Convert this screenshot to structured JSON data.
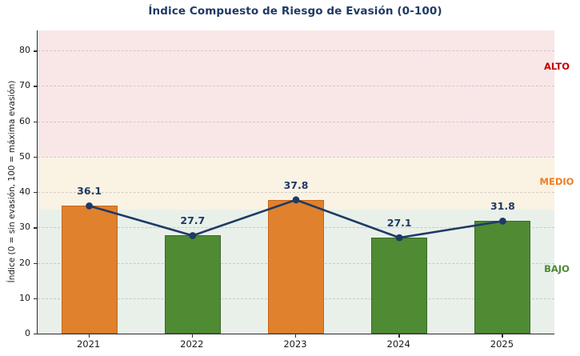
{
  "chart_data": {
    "type": "bar",
    "title": "Índice Compuesto de Riesgo de Evasión (0-100)",
    "categories": [
      "2021",
      "2022",
      "2023",
      "2024",
      "2025"
    ],
    "values": [
      36.1,
      27.7,
      37.8,
      27.1,
      31.8
    ],
    "bar_colors": [
      "#e0812d",
      "#4e8b33",
      "#e0812d",
      "#4e8b33",
      "#4e8b33"
    ],
    "bar_edge_colors": [
      "#c8661a",
      "#3a6b26",
      "#c8661a",
      "#3a6b26",
      "#3a6b26"
    ],
    "overlay_line": {
      "type": "line",
      "values": [
        36.1,
        27.7,
        37.8,
        27.1,
        31.8
      ],
      "color": "#1f3a64",
      "marker": "circle"
    },
    "data_label_color": "#1f3a64",
    "xlabel": "",
    "ylabel": "Índice (0 = sin evasión, 100 = máxima evasión)",
    "ylim": [
      0,
      85.7
    ],
    "yticks": [
      0,
      10,
      20,
      30,
      40,
      50,
      60,
      70,
      80
    ],
    "grid": {
      "axis": "y",
      "style": "dashed"
    },
    "legend": "none",
    "zones": [
      {
        "label": "ALTO",
        "from": 50,
        "to": 85.7,
        "bg": "#f9e7e8",
        "label_color": "#c40000",
        "label_y": 75.5
      },
      {
        "label": "MEDIO",
        "from": 35,
        "to": 50,
        "bg": "#faf3e3",
        "label_color": "#ee7e22",
        "label_y": 43
      },
      {
        "label": "BAJO",
        "from": 0,
        "to": 35,
        "bg": "#e9f0ea",
        "label_color": "#4c8a33",
        "label_y": 18.3
      }
    ]
  }
}
